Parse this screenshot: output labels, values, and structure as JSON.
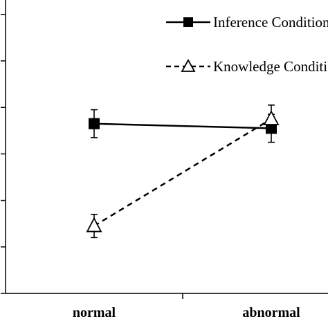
{
  "chart_data": {
    "type": "line",
    "categories": [
      "normal",
      "abnormal"
    ],
    "series": [
      {
        "name": "Inference Condition",
        "values": [
          3.65,
          3.55
        ],
        "err": [
          0.3,
          0.3
        ],
        "marker": "square",
        "line": "solid"
      },
      {
        "name": "Knowledge Condition",
        "values": [
          1.45,
          3.75
        ],
        "err": [
          0.25,
          0.3
        ],
        "marker": "triangle",
        "line": "dashed"
      }
    ],
    "legend_position": "top-right",
    "ylim": [
      0,
      6
    ],
    "y_gridlines": false,
    "colors": {
      "line": "#000000",
      "marker_fill_square": "#000000",
      "marker_fill_triangle": "#ffffff"
    }
  }
}
